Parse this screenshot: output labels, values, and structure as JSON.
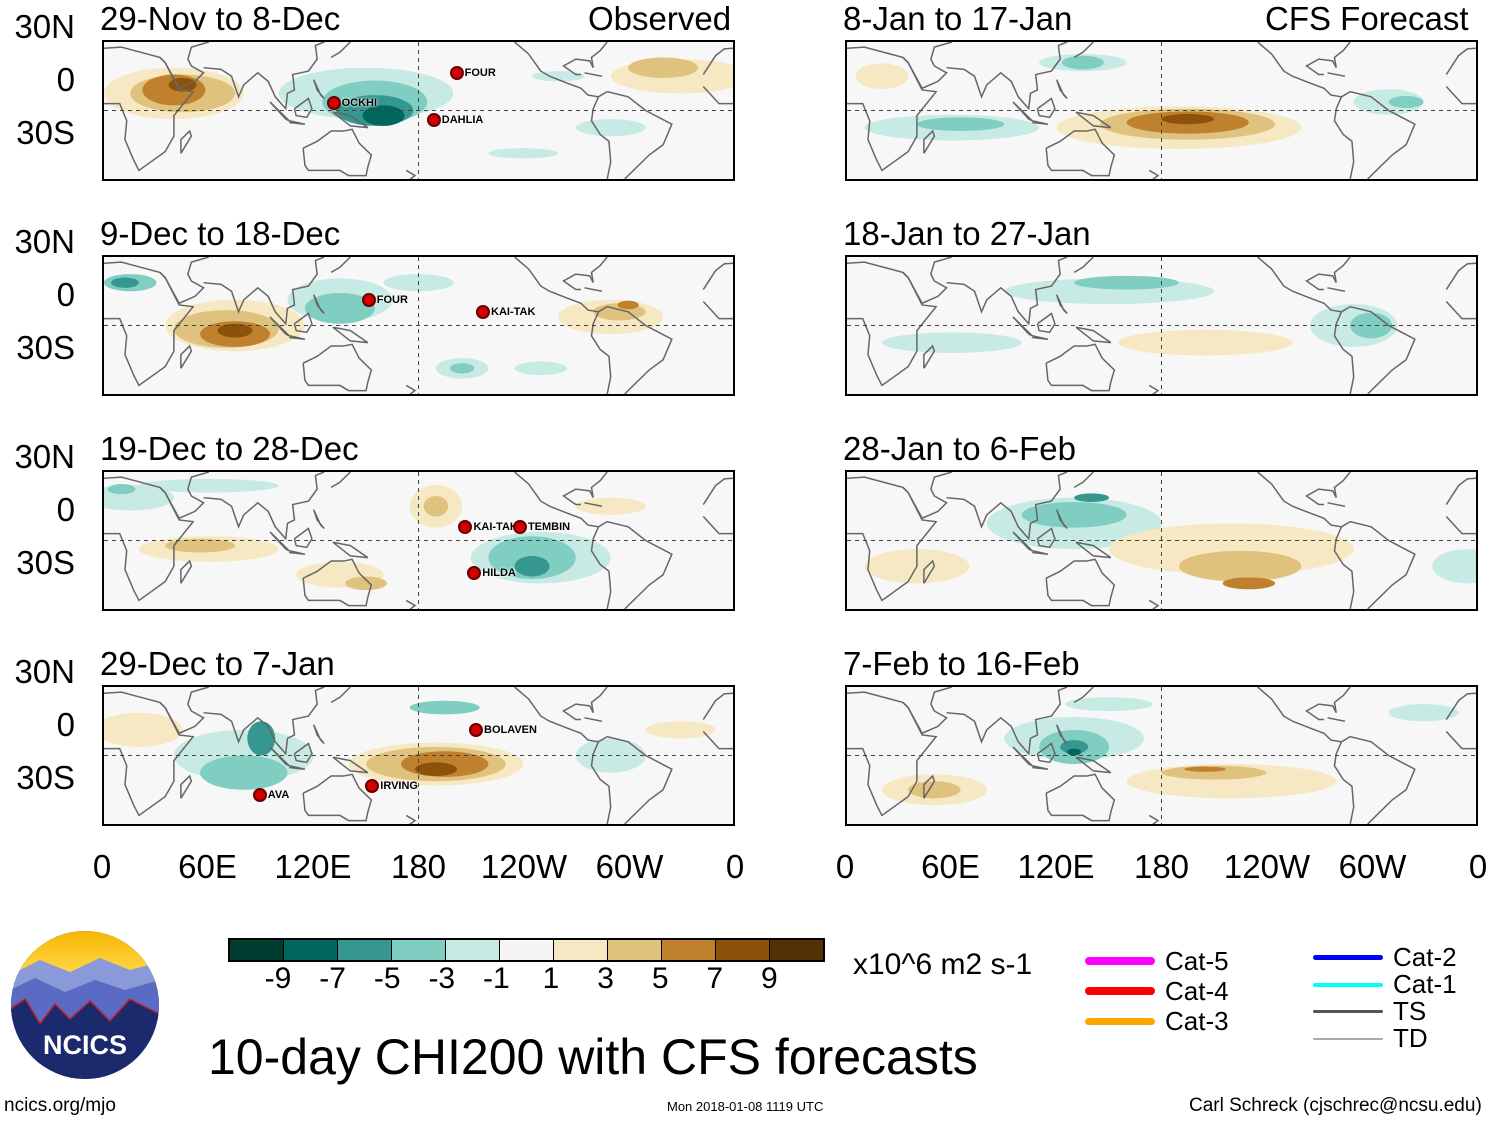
{
  "header": {
    "observed": "Observed",
    "forecast": "CFS Forecast"
  },
  "panels": [
    {
      "title": "29-Nov to 8-Dec",
      "storms": [
        "FOUR",
        "OCKHI",
        "DAHLIA"
      ]
    },
    {
      "title": "9-Dec to 18-Dec",
      "storms": [
        "FOUR",
        "KAI-TAK"
      ]
    },
    {
      "title": "19-Dec to 28-Dec",
      "storms": [
        "KAI-TAK",
        "TEMBIN",
        "HILDA"
      ]
    },
    {
      "title": "29-Dec to 7-Jan",
      "storms": [
        "BOLAVEN",
        "AVA",
        "IRVING"
      ]
    },
    {
      "title": "8-Jan to 17-Jan",
      "storms": []
    },
    {
      "title": "18-Jan to 27-Jan",
      "storms": []
    },
    {
      "title": "28-Jan to 6-Feb",
      "storms": []
    },
    {
      "title": "7-Feb to 16-Feb",
      "storms": []
    }
  ],
  "lat_labels": [
    "30N",
    "0",
    "30S"
  ],
  "lon_labels": [
    "0",
    "60E",
    "120E",
    "180",
    "120W",
    "60W",
    "0"
  ],
  "colorbar": {
    "colors": [
      "#003c30",
      "#01665e",
      "#35978f",
      "#80cdc1",
      "#c7eae5",
      "#f5f5f5",
      "#f6e8c3",
      "#dfc27d",
      "#bf812d",
      "#8c510a",
      "#543005"
    ],
    "labels": [
      "-9",
      "-7",
      "-5",
      "-3",
      "-1",
      "1",
      "3",
      "5",
      "7",
      "9"
    ],
    "units": "x10^6 m2 s-1"
  },
  "legend": [
    {
      "label": "Cat-5",
      "color": "#ff00ff"
    },
    {
      "label": "Cat-4",
      "color": "#ff0000"
    },
    {
      "label": "Cat-3",
      "color": "#ffa500"
    },
    {
      "label": "Cat-2",
      "color": "#0000ff"
    },
    {
      "label": "Cat-1",
      "color": "#00ffff"
    },
    {
      "label": "TS",
      "color": "#555555"
    },
    {
      "label": "TD",
      "color": "#aaaaaa"
    }
  ],
  "logo": {
    "text": "NCICS"
  },
  "title": "10-day CHI200 with CFS forecasts",
  "footer": {
    "url": "ncics.org/mjo",
    "timestamp": "Mon 2018-01-08 1119 UTC",
    "credit": "Carl Schreck (cjschrec@ncsu.edu)"
  }
}
